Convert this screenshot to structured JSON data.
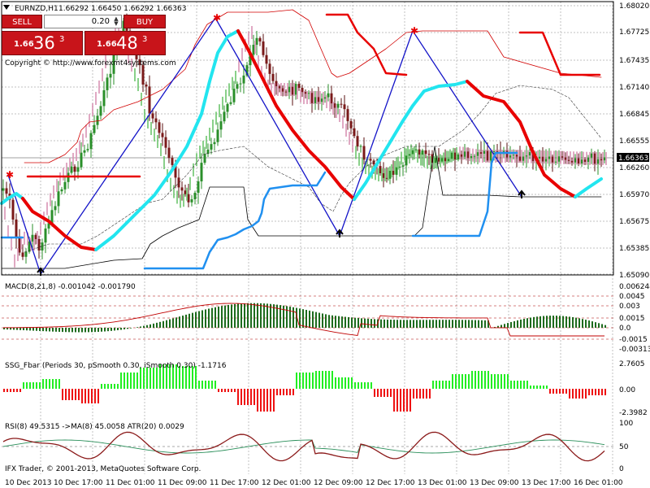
{
  "header": {
    "symbol": "EURNZD,H1",
    "ohlc": "1.66292 1.66450 1.66292 1.66363"
  },
  "trade_panel": {
    "sell_label": "SELL",
    "buy_label": "BUY",
    "lot": "0.20",
    "sell_small": "1.66",
    "sell_big": "36",
    "sell_sup": "3",
    "buy_small": "1.66",
    "buy_big": "48",
    "buy_sup": "3"
  },
  "copyright": "Copyright © http://www.forexmt4systems.com",
  "footer_text": "IFX Trader, © 2001-2013, MetaQuotes Software Corp.",
  "colors": {
    "zigzag": "#1414c8",
    "cyan": "#22e5ef",
    "red": "#e80000",
    "blue_line": "#2090f0",
    "bull": "#2a8f2a",
    "bear": "#b84a7a"
  },
  "chart_data": [
    {
      "type": "candlestick",
      "panel": "main",
      "y_ticks": [
        "1.68020",
        "1.67725",
        "1.67435",
        "1.67140",
        "1.66845",
        "1.66555",
        "1.66260",
        "1.65970",
        "1.65675",
        "1.65385",
        "1.65090"
      ],
      "ylim": [
        1.6509,
        1.6802
      ],
      "current_price": "1.66363",
      "x_ticks": [
        "10 Dec 2013",
        "10 Dec 17:00",
        "11 Dec 01:00",
        "11 Dec 09:00",
        "11 Dec 17:00",
        "12 Dec 01:00",
        "12 Dec 09:00",
        "12 Dec 17:00",
        "13 Dec 01:00",
        "13 Dec 09:00",
        "13 Dec 17:00",
        "16 Dec 01:00"
      ],
      "zigzag_points": [
        {
          "x": "10 Dec 2013",
          "y": 1.6624
        },
        {
          "x": "10 Dec 09:00",
          "y": 1.651
        },
        {
          "x": "11 Dec 11:00",
          "y": 1.6792
        },
        {
          "x": "12 Dec 11:00",
          "y": 1.6545
        },
        {
          "x": "12 Dec 22:00",
          "y": 1.677
        },
        {
          "x": "13 Dec 17:00",
          "y": 1.659
        }
      ]
    },
    {
      "type": "bar",
      "panel": "macd",
      "label": "MACD(8,21,8) -0.001042 -0.001790",
      "y_ticks": [
        "0.006244",
        "0.0045",
        "0.003",
        "0.0015",
        "0.0",
        "-0.0015",
        "-0.003137"
      ],
      "ylim": [
        -0.003137,
        0.006244
      ]
    },
    {
      "type": "bar",
      "panel": "ssg",
      "label": "SSG_Fbar  (Periods 30, pSmooth 0.30, iSmooth 0.30) -1.1716",
      "y_ticks": [
        "2.7605",
        "0.00",
        "-2.3982"
      ],
      "ylim": [
        -2.3982,
        2.7605
      ]
    },
    {
      "type": "line",
      "panel": "rsi",
      "label": "RSI(8) 49.5315  ->MA(8) 45.0058  ATR(20) 0.0029",
      "y_ticks": [
        "100",
        "50",
        "0"
      ],
      "ylim": [
        0,
        100
      ]
    }
  ]
}
